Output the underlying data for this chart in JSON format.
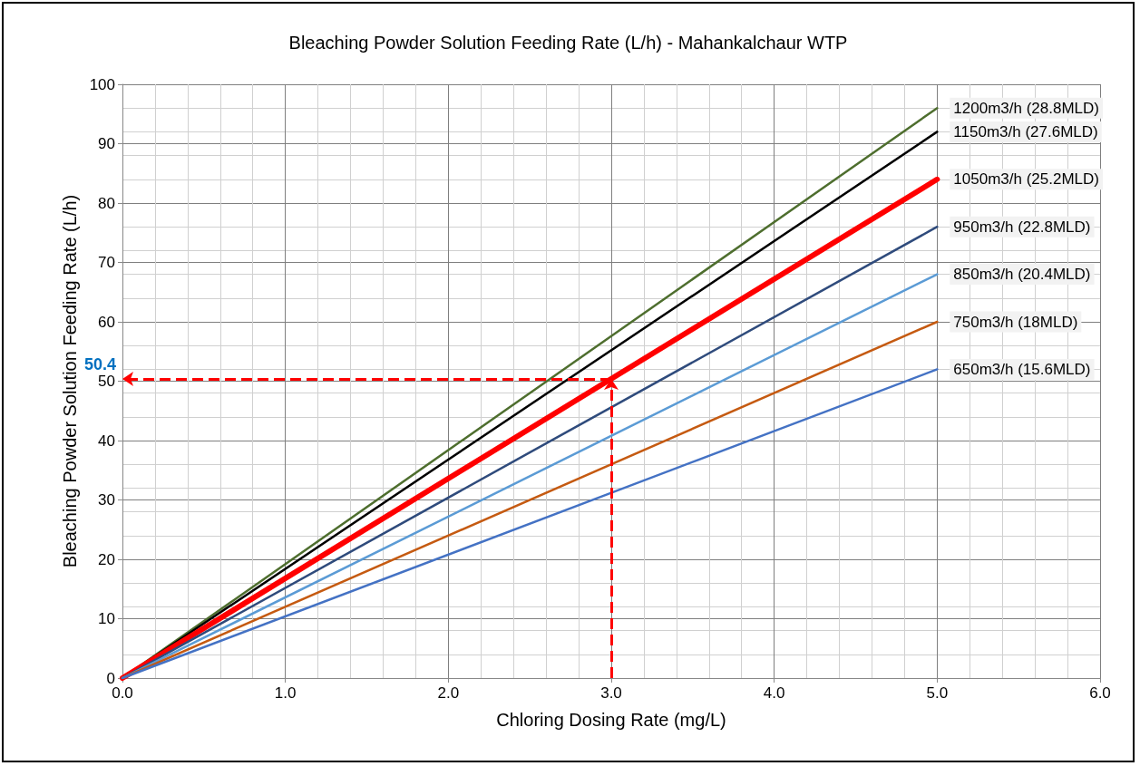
{
  "chart_data": {
    "type": "line",
    "title": "Bleaching Powder Solution Feeding Rate (L/h) - Mahankalchaur WTP",
    "xlabel": "Chloring Dosing Rate (mg/L)",
    "ylabel": "Bleaching Powder Solution Feeding Rate (L/h)",
    "x": [
      0,
      5
    ],
    "series": [
      {
        "name": "1200m3/h (28.8MLD)",
        "color": "#4e6e2e",
        "values": [
          0,
          96
        ]
      },
      {
        "name": "1150m3/h (27.6MLD)",
        "color": "#000000",
        "values": [
          0,
          92
        ]
      },
      {
        "name": "1050m3/h (25.2MLD)",
        "color": "#ff0000",
        "values": [
          0,
          84
        ]
      },
      {
        "name": "950m3/h (22.8MLD)",
        "color": "#2f4b7c",
        "values": [
          0,
          76
        ]
      },
      {
        "name": "850m3/h (20.4MLD)",
        "color": "#5b9bd5",
        "values": [
          0,
          68
        ]
      },
      {
        "name": "750m3/h (18MLD)",
        "color": "#c55a11",
        "values": [
          0,
          60
        ]
      },
      {
        "name": "650m3/h (15.6MLD)",
        "color": "#4472c4",
        "values": [
          0,
          52
        ]
      }
    ],
    "xlim": [
      0,
      6
    ],
    "xticks": [
      {
        "value": 0,
        "label": "0.0"
      },
      {
        "value": 1,
        "label": "1.0"
      },
      {
        "value": 2,
        "label": "2.0"
      },
      {
        "value": 3,
        "label": "3.0"
      },
      {
        "value": 4,
        "label": "4.0"
      },
      {
        "value": 5,
        "label": "5.0"
      },
      {
        "value": 6,
        "label": "6.0"
      }
    ],
    "ylim": [
      0,
      100
    ],
    "yticks": [
      0,
      10,
      20,
      30,
      40,
      50,
      60,
      70,
      80,
      90,
      100
    ],
    "ref_lines": [
      {
        "axis": "y",
        "value": 50.4,
        "label": "50.4",
        "color": "#ff0000",
        "line_style": "dashed"
      },
      {
        "axis": "x",
        "value": 3,
        "label": null,
        "color": "#ff0000",
        "line_style": "dashed"
      }
    ],
    "grid": true,
    "legend": false,
    "marker": "none",
    "line_style": "solid"
  }
}
